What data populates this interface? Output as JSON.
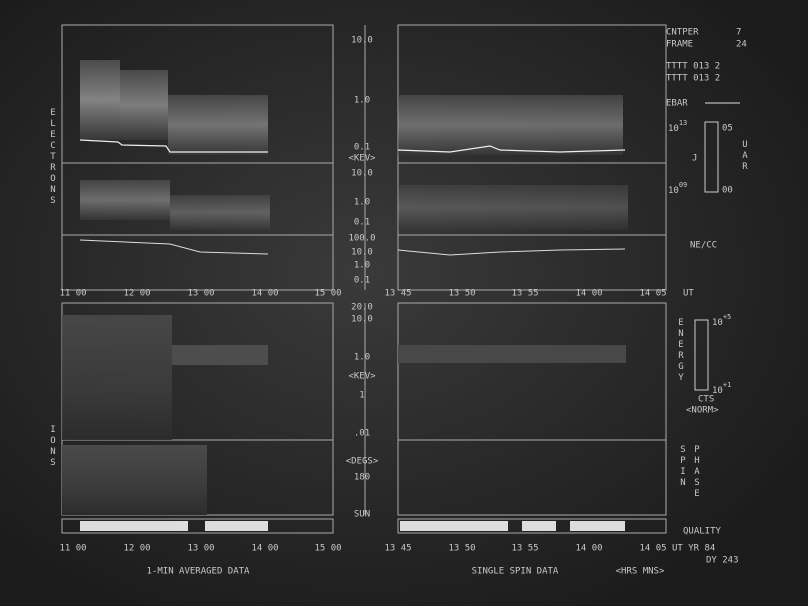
{
  "status": {
    "cntper_label": "CNTPER",
    "cntper": "7",
    "frame_label": "FRAME",
    "frame": "24",
    "line1": "TTTT 013 2",
    "line2": "TTTT 013 2",
    "ebar": "EBAR"
  },
  "electron_scale": {
    "max_base": "10",
    "max_exp": "13",
    "mid": "J",
    "min_base": "10",
    "min_exp": "09",
    "top": "05",
    "label": "UAR",
    "bottom": "00"
  },
  "density_label": "NE/CC",
  "side_labels": {
    "electrons": "ELECTRONS",
    "ions": "IONS"
  },
  "center_axis": {
    "electron_upper": [
      "10.0",
      "1.0",
      "0.1",
      "<KEV>"
    ],
    "electron_lower": [
      "10.0",
      "1.0",
      "0.1"
    ],
    "density": [
      "100.0",
      "10.0",
      "1.0",
      "0.1"
    ],
    "ion": [
      "20.0",
      "10.0",
      "1.0",
      "<KEV>",
      "1",
      ".01"
    ],
    "phase": [
      "<DEGS>",
      "180",
      "SUN"
    ]
  },
  "x_axes": {
    "left": [
      "11 00",
      "12 00",
      "13 00",
      "14 00",
      "15 00"
    ],
    "right": [
      "13 45",
      "13 50",
      "13 55",
      "14 00",
      "14 05"
    ],
    "ut": "UT",
    "ut_yr": "UT YR 84",
    "day": "DY 243"
  },
  "ion_scale": {
    "label": "ENERGY",
    "max_base": "10",
    "max_exp": "+5",
    "min_base": "10",
    "min_exp": "+1",
    "units": "CTS",
    "norm": "<NORM>"
  },
  "spin_phase": {
    "word1": "SPIN",
    "word2": "PHASE"
  },
  "quality": "QUALITY",
  "captions": {
    "left": "1-MIN AVERAGED DATA",
    "right": "SINGLE SPIN DATA",
    "units": "<HRS MNS>"
  }
}
